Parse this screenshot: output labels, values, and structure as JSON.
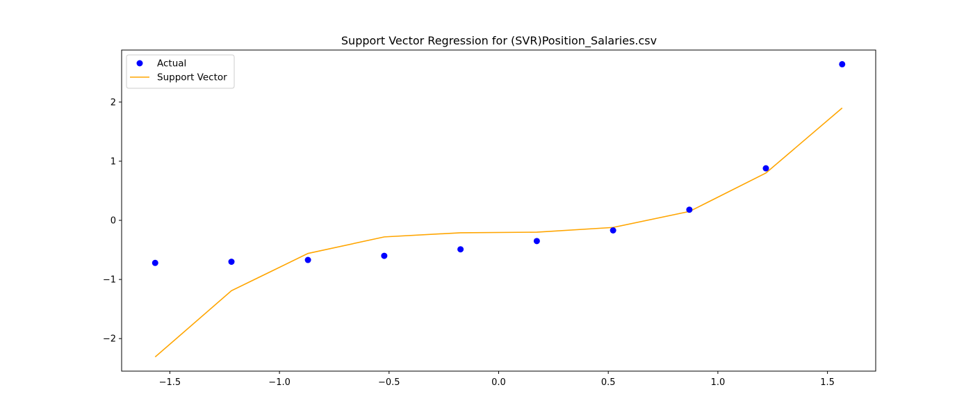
{
  "chart_data": {
    "type": "scatter",
    "title": "Support Vector Regression for (SVR)Position_Salaries.csv",
    "xlabel": "",
    "ylabel": "",
    "xlim": [
      -1.72,
      1.72
    ],
    "ylim": [
      -2.55,
      2.88
    ],
    "x_ticks": [
      -1.5,
      -1.0,
      -0.5,
      0.0,
      0.5,
      1.0,
      1.5
    ],
    "x_tick_labels": [
      "−1.5",
      "−1.0",
      "−0.5",
      "0.0",
      "0.5",
      "1.0",
      "1.5"
    ],
    "y_ticks": [
      -2,
      -1,
      0,
      1,
      2
    ],
    "y_tick_labels": [
      "−2",
      "−1",
      "0",
      "1",
      "2"
    ],
    "grid": false,
    "legend_position": "upper left",
    "series": [
      {
        "name": "Actual",
        "kind": "scatter",
        "color": "#0000ff",
        "x": [
          -1.567,
          -1.219,
          -0.87,
          -0.522,
          -0.174,
          0.174,
          0.522,
          0.87,
          1.219,
          1.567
        ],
        "y": [
          -0.72,
          -0.7,
          -0.67,
          -0.6,
          -0.49,
          -0.35,
          -0.17,
          0.18,
          0.88,
          2.64
        ]
      },
      {
        "name": "Support Vector",
        "kind": "line",
        "color": "#ffa500",
        "x": [
          -1.567,
          -1.219,
          -0.87,
          -0.522,
          -0.174,
          0.174,
          0.522,
          0.87,
          1.219,
          1.567
        ],
        "y": [
          -2.31,
          -1.19,
          -0.56,
          -0.28,
          -0.21,
          -0.2,
          -0.12,
          0.15,
          0.8,
          1.9
        ]
      }
    ]
  }
}
